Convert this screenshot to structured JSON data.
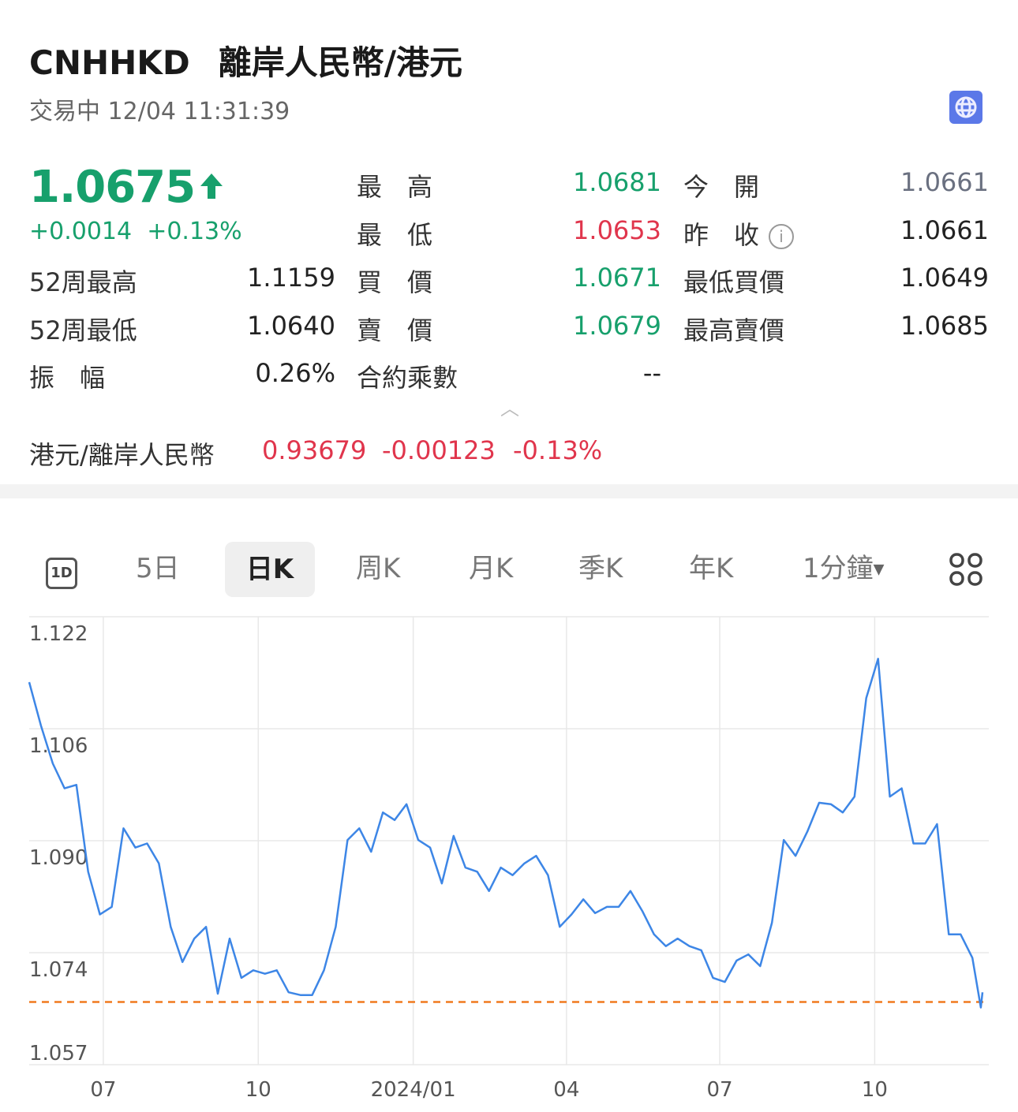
{
  "header": {
    "symbol": "CNHHKD",
    "name": "離岸人民幣/港元",
    "status": "交易中 12/04 11:31:39",
    "globe_icon": "globe-icon"
  },
  "quote": {
    "price": "1.0675",
    "direction_icon": "arrow-up-icon",
    "change": "+0.0014",
    "change_pct": "+0.13%"
  },
  "stats": [
    {
      "label": "最　高",
      "value": "1.0681",
      "color": "green"
    },
    {
      "label": "今　開",
      "value": "1.0661",
      "color": "gray"
    },
    {
      "label": "最　低",
      "value": "1.0653",
      "color": "red"
    },
    {
      "label": "昨　收",
      "value": "1.0661",
      "color": "black"
    },
    {
      "label": "52周最高",
      "value": "1.1159"
    },
    {
      "label": "買　價",
      "value": "1.0671",
      "color": "green"
    },
    {
      "label": "最低買價",
      "value": "1.0649"
    },
    {
      "label": "52周最低",
      "value": "1.0640"
    },
    {
      "label": "賣　價",
      "value": "1.0679",
      "color": "green"
    },
    {
      "label": "最高賣價",
      "value": "1.0685"
    },
    {
      "label": "振　幅",
      "value": "0.26%"
    },
    {
      "label": "合約乘數",
      "value": "--"
    }
  ],
  "reverse": {
    "label": "港元/離岸人民幣",
    "price": "0.93679",
    "change": "-0.00123",
    "change_pct": "-0.13%"
  },
  "tabs": [
    {
      "label": "1D",
      "icon": "1d-icon"
    },
    {
      "label": "5日"
    },
    {
      "label": "日K",
      "active": true
    },
    {
      "label": "周K"
    },
    {
      "label": "月K"
    },
    {
      "label": "季K"
    },
    {
      "label": "年K"
    },
    {
      "label": "1分鐘"
    }
  ],
  "colors": {
    "green": "#17a06c",
    "red": "#e0354c",
    "line": "#3d86e6",
    "ref": "#f07a1e"
  },
  "chart_data": {
    "type": "line",
    "ylim": [
      1.057,
      1.122
    ],
    "yticks": [
      "1.122",
      "1.106",
      "1.090",
      "1.074",
      "1.057"
    ],
    "xticks": [
      {
        "label": "07",
        "date": "2023-07-01"
      },
      {
        "label": "10",
        "date": "2023-10-01"
      },
      {
        "label": "2024/01",
        "date": "2024-01-01"
      },
      {
        "label": "04",
        "date": "2024-04-01"
      },
      {
        "label": "07",
        "date": "2024-07-01"
      },
      {
        "label": "10",
        "date": "2024-10-01"
      }
    ],
    "reference_line": {
      "value": 1.0661,
      "style": "dashed"
    },
    "grid": true,
    "x": [
      "2023-05-18",
      "2023-05-25",
      "2023-06-01",
      "2023-06-08",
      "2023-06-15",
      "2023-06-22",
      "2023-06-29",
      "2023-07-06",
      "2023-07-13",
      "2023-07-20",
      "2023-07-27",
      "2023-08-03",
      "2023-08-10",
      "2023-08-17",
      "2023-08-24",
      "2023-08-31",
      "2023-09-07",
      "2023-09-14",
      "2023-09-21",
      "2023-09-28",
      "2023-10-05",
      "2023-10-12",
      "2023-10-19",
      "2023-10-26",
      "2023-11-02",
      "2023-11-09",
      "2023-11-16",
      "2023-11-23",
      "2023-11-30",
      "2023-12-07",
      "2023-12-14",
      "2023-12-21",
      "2023-12-28",
      "2024-01-04",
      "2024-01-11",
      "2024-01-18",
      "2024-01-25",
      "2024-02-01",
      "2024-02-08",
      "2024-02-15",
      "2024-02-22",
      "2024-02-29",
      "2024-03-07",
      "2024-03-14",
      "2024-03-21",
      "2024-03-28",
      "2024-04-04",
      "2024-04-11",
      "2024-04-18",
      "2024-04-25",
      "2024-05-02",
      "2024-05-09",
      "2024-05-16",
      "2024-05-23",
      "2024-05-30",
      "2024-06-06",
      "2024-06-13",
      "2024-06-20",
      "2024-06-27",
      "2024-07-04",
      "2024-07-11",
      "2024-07-18",
      "2024-07-25",
      "2024-08-01",
      "2024-08-08",
      "2024-08-15",
      "2024-08-22",
      "2024-08-29",
      "2024-09-05",
      "2024-09-12",
      "2024-09-19",
      "2024-09-26",
      "2024-10-03",
      "2024-10-10",
      "2024-10-17",
      "2024-10-24",
      "2024-10-31",
      "2024-11-07",
      "2024-11-14",
      "2024-11-21",
      "2024-11-28",
      "2024-12-03",
      "2024-12-04"
    ],
    "values": [
      1.1125,
      1.1062,
      1.1007,
      1.0971,
      1.0976,
      1.085,
      1.0788,
      1.0799,
      1.0913,
      1.0885,
      1.0891,
      1.0862,
      1.077,
      1.0719,
      1.0753,
      1.077,
      1.0673,
      1.0753,
      1.0696,
      1.0707,
      1.0702,
      1.0707,
      1.0675,
      1.0671,
      1.0671,
      1.0707,
      1.077,
      1.0896,
      1.0913,
      1.0879,
      1.0936,
      1.0925,
      1.0948,
      1.0896,
      1.0885,
      1.0833,
      1.0902,
      1.0856,
      1.085,
      1.0822,
      1.0856,
      1.0845,
      1.0862,
      1.0873,
      1.0845,
      1.077,
      1.0788,
      1.081,
      1.079,
      1.0799,
      1.0799,
      1.0822,
      1.0793,
      1.0759,
      1.0742,
      1.0753,
      1.0742,
      1.0736,
      1.0696,
      1.069,
      1.0721,
      1.073,
      1.0713,
      1.0776,
      1.0896,
      1.0873,
      1.0908,
      1.095,
      1.0948,
      1.0936,
      1.0959,
      1.1102,
      1.1159,
      1.0959,
      1.0971,
      1.0891,
      1.0891,
      1.0919,
      1.0759,
      1.0759,
      1.0725,
      1.0653,
      1.0675
    ]
  }
}
